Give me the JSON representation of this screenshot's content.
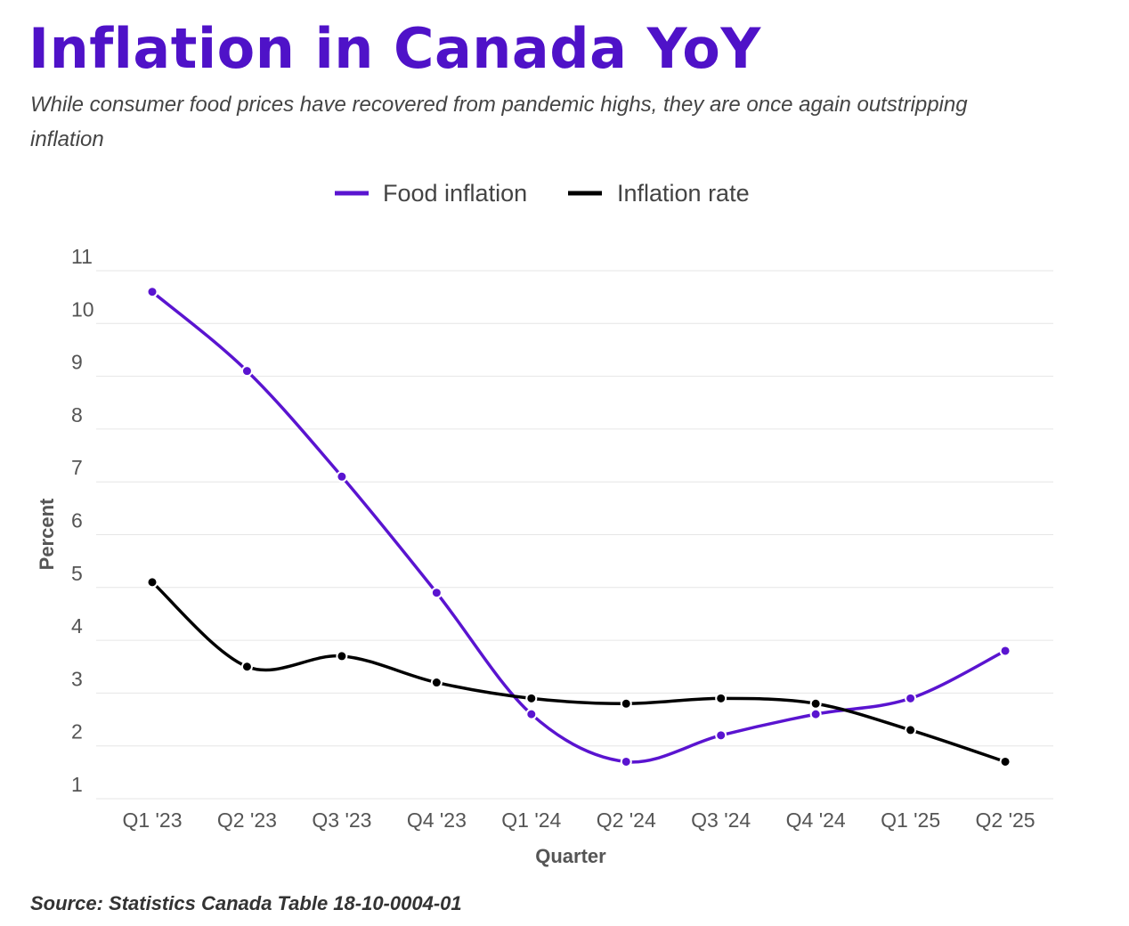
{
  "title": "Inflation in Canada YoY",
  "subtitle": "While consumer food prices have recovered from pandemic highs, they are once again outstripping inflation",
  "source": "Source: Statistics Canada Table 18-10-0004-01",
  "chart_data": {
    "type": "line",
    "xlabel": "Quarter",
    "ylabel": "Percent",
    "ylim": [
      1,
      11
    ],
    "yticks": [
      1,
      2,
      3,
      4,
      5,
      6,
      7,
      8,
      9,
      10,
      11
    ],
    "grid": true,
    "legend_placement": "top-center",
    "categories": [
      "Q1 '23",
      "Q2 '23",
      "Q3 '23",
      "Q4 '23",
      "Q1 '24",
      "Q2 '24",
      "Q3 '24",
      "Q4 '24",
      "Q1 '25",
      "Q2 '25"
    ],
    "series": [
      {
        "name": "Food inflation",
        "color": "#5a14d0",
        "values": [
          10.6,
          9.1,
          7.1,
          4.9,
          2.6,
          1.7,
          2.2,
          2.6,
          2.9,
          3.8
        ]
      },
      {
        "name": "Inflation rate",
        "color": "#000000",
        "values": [
          5.1,
          3.5,
          3.7,
          3.2,
          2.9,
          2.8,
          2.9,
          2.8,
          2.3,
          1.7
        ]
      }
    ]
  }
}
